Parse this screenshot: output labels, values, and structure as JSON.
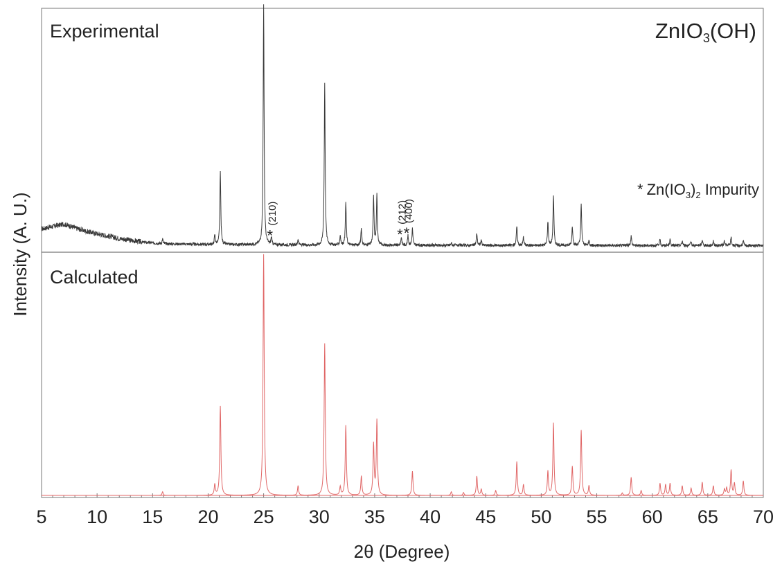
{
  "chart_data": {
    "type": "line",
    "title": "ZnIO3(OH)",
    "title_main": "ZnIO",
    "title_sub": "3",
    "title_tail": "(OH)",
    "xlabel": "2θ (Degree)",
    "ylabel": "Intensity (A. U.)",
    "xlim": [
      5,
      70
    ],
    "x_ticks": [
      5,
      10,
      15,
      20,
      25,
      30,
      35,
      40,
      45,
      50,
      55,
      60,
      65,
      70
    ],
    "y_ticks": [],
    "grid": false,
    "legend": "none",
    "series": [
      {
        "name": "Experimental",
        "color": "#3a3a3a",
        "background": [
          [
            5.0,
            0.08
          ],
          [
            6.0,
            0.09
          ],
          [
            7.0,
            0.1
          ],
          [
            8.0,
            0.085
          ],
          [
            9.0,
            0.07
          ],
          [
            10.0,
            0.06
          ],
          [
            12.0,
            0.04
          ],
          [
            14.0,
            0.025
          ],
          [
            16.0,
            0.018
          ],
          [
            20.0,
            0.015
          ],
          [
            30.0,
            0.012
          ],
          [
            70.0,
            0.01
          ]
        ],
        "peaks": [
          {
            "x": 15.9,
            "h": 0.02
          },
          {
            "x": 20.6,
            "h": 0.04
          },
          {
            "x": 21.1,
            "h": 0.3
          },
          {
            "x": 25.0,
            "h": 1.0
          },
          {
            "x": 25.7,
            "h": 0.03
          },
          {
            "x": 28.1,
            "h": 0.025
          },
          {
            "x": 30.5,
            "h": 0.68
          },
          {
            "x": 31.9,
            "h": 0.04
          },
          {
            "x": 32.4,
            "h": 0.18
          },
          {
            "x": 33.8,
            "h": 0.07
          },
          {
            "x": 34.9,
            "h": 0.2
          },
          {
            "x": 35.2,
            "h": 0.21
          },
          {
            "x": 37.4,
            "h": 0.035
          },
          {
            "x": 38.0,
            "h": 0.04
          },
          {
            "x": 38.4,
            "h": 0.07
          },
          {
            "x": 41.9,
            "h": 0.01
          },
          {
            "x": 44.2,
            "h": 0.05
          },
          {
            "x": 44.6,
            "h": 0.02
          },
          {
            "x": 47.8,
            "h": 0.08
          },
          {
            "x": 48.4,
            "h": 0.035
          },
          {
            "x": 50.6,
            "h": 0.1
          },
          {
            "x": 51.1,
            "h": 0.21
          },
          {
            "x": 52.8,
            "h": 0.08
          },
          {
            "x": 53.6,
            "h": 0.17
          },
          {
            "x": 54.3,
            "h": 0.02
          },
          {
            "x": 58.1,
            "h": 0.04
          },
          {
            "x": 60.7,
            "h": 0.025
          },
          {
            "x": 61.6,
            "h": 0.025
          },
          {
            "x": 62.7,
            "h": 0.02
          },
          {
            "x": 63.5,
            "h": 0.015
          },
          {
            "x": 64.5,
            "h": 0.025
          },
          {
            "x": 65.5,
            "h": 0.02
          },
          {
            "x": 66.5,
            "h": 0.02
          },
          {
            "x": 67.1,
            "h": 0.035
          },
          {
            "x": 68.2,
            "h": 0.02
          }
        ]
      },
      {
        "name": "Calculated",
        "color": "#e06666",
        "peaks": [
          {
            "x": 15.9,
            "h": 0.015
          },
          {
            "x": 20.6,
            "h": 0.045
          },
          {
            "x": 21.1,
            "h": 0.37
          },
          {
            "x": 25.0,
            "h": 1.0
          },
          {
            "x": 28.1,
            "h": 0.04
          },
          {
            "x": 30.5,
            "h": 0.63
          },
          {
            "x": 31.9,
            "h": 0.035
          },
          {
            "x": 32.4,
            "h": 0.29
          },
          {
            "x": 33.8,
            "h": 0.08
          },
          {
            "x": 34.9,
            "h": 0.21
          },
          {
            "x": 35.2,
            "h": 0.31
          },
          {
            "x": 38.4,
            "h": 0.1
          },
          {
            "x": 41.9,
            "h": 0.015
          },
          {
            "x": 43.0,
            "h": 0.012
          },
          {
            "x": 44.2,
            "h": 0.08
          },
          {
            "x": 44.6,
            "h": 0.025
          },
          {
            "x": 45.9,
            "h": 0.02
          },
          {
            "x": 47.8,
            "h": 0.14
          },
          {
            "x": 48.4,
            "h": 0.045
          },
          {
            "x": 50.6,
            "h": 0.1
          },
          {
            "x": 51.1,
            "h": 0.3
          },
          {
            "x": 52.8,
            "h": 0.12
          },
          {
            "x": 53.6,
            "h": 0.27
          },
          {
            "x": 54.3,
            "h": 0.04
          },
          {
            "x": 57.3,
            "h": 0.01
          },
          {
            "x": 58.1,
            "h": 0.075
          },
          {
            "x": 59.0,
            "h": 0.02
          },
          {
            "x": 60.7,
            "h": 0.05
          },
          {
            "x": 61.2,
            "h": 0.045
          },
          {
            "x": 61.6,
            "h": 0.05
          },
          {
            "x": 62.7,
            "h": 0.04
          },
          {
            "x": 63.5,
            "h": 0.03
          },
          {
            "x": 64.5,
            "h": 0.055
          },
          {
            "x": 65.5,
            "h": 0.04
          },
          {
            "x": 66.5,
            "h": 0.025
          },
          {
            "x": 66.7,
            "h": 0.03
          },
          {
            "x": 67.1,
            "h": 0.105
          },
          {
            "x": 67.4,
            "h": 0.05
          },
          {
            "x": 68.2,
            "h": 0.06
          }
        ]
      }
    ],
    "annotations": [
      {
        "text": "(210)",
        "x": 25.7,
        "level": 0.03
      },
      {
        "text": "(212)",
        "x": 37.4,
        "level": 0.035
      },
      {
        "text": "(400)",
        "x": 38.0,
        "level": 0.04
      }
    ],
    "marker_positions": [
      25.7,
      37.4,
      38.0
    ],
    "impurity_label": {
      "star": "*",
      "main": "Zn(IO",
      "sub": "3",
      "tail": ")",
      "sub2": "2",
      "rest": " Impurity"
    }
  }
}
